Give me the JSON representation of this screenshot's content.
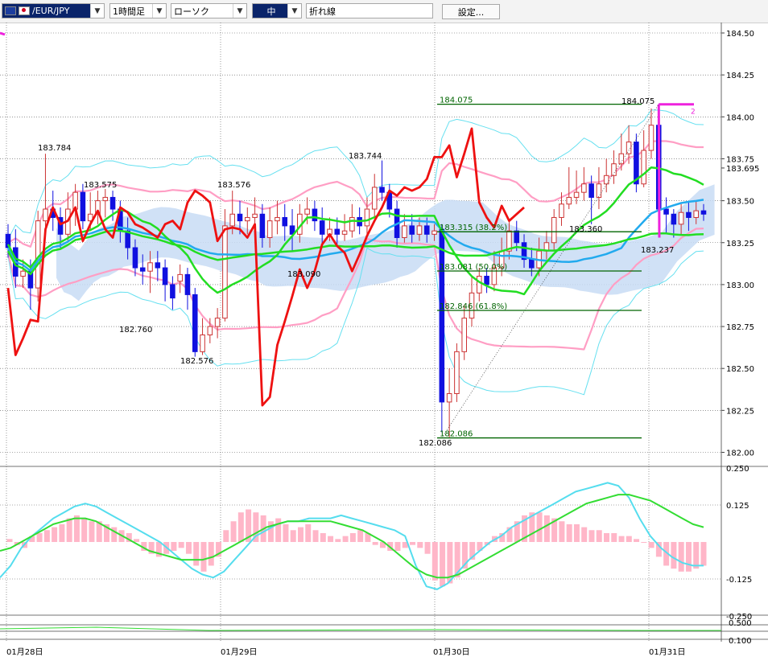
{
  "toolbar": {
    "symbol": "/EUR/JPY",
    "timeframe": "1時間足",
    "chart_type": "ローソク",
    "size": "中",
    "overlay": "折れ線",
    "settings": "設定..."
  },
  "colors": {
    "bull": "#cc3333",
    "bear": "#1010e0",
    "bb_outer": "#66e0f0",
    "bb_mid": "#ff9ec4",
    "ma_green": "#22dd22",
    "ma_blue": "#22aaee",
    "line_red": "#ee1111",
    "cloud": "#c8dcf4",
    "fib": "#006400",
    "magenta": "#ee22dd",
    "macd_hist": "#ffb6c8",
    "macd": "#55ddee",
    "signal": "#33dd33"
  },
  "chart_data": [
    {
      "type": "line",
      "panel": "main",
      "y_ticks": [
        "184.50",
        "184.25",
        "184.00",
        "183.75",
        "183.695",
        "183.50",
        "183.25",
        "183.00",
        "182.75",
        "182.50",
        "182.25",
        "182.00"
      ],
      "ylim": [
        182.0,
        184.5
      ],
      "x_labels": [
        "01月28日",
        "01月29日",
        "01月30日",
        "01月31日"
      ],
      "price_annotations": [
        "183.784",
        "183.575",
        "183.576",
        "183.744",
        "182.760",
        "182.576",
        "183.090",
        "184.075",
        "183.360",
        "183.237",
        "182.086"
      ],
      "fib_levels": [
        {
          "label": "184.075",
          "value": 184.075
        },
        {
          "label": "183.315 (38.2%)",
          "value": 183.315
        },
        {
          "label": "183.081 (50.0%)",
          "value": 183.081
        },
        {
          "label": "182.846 (61.8%)",
          "value": 182.846
        },
        {
          "label": "182.086",
          "value": 182.086
        }
      ],
      "candles": [
        [
          183.3,
          183.22,
          183.36,
          183.16
        ],
        [
          183.22,
          183.05,
          183.33,
          182.98
        ],
        [
          183.05,
          183.08,
          183.15,
          182.98
        ],
        [
          183.08,
          182.98,
          183.15,
          182.85
        ],
        [
          182.98,
          183.38,
          183.44,
          182.9
        ],
        [
          183.38,
          183.45,
          183.78,
          183.32
        ],
        [
          183.45,
          183.4,
          183.56,
          183.32
        ],
        [
          183.4,
          183.3,
          183.46,
          183.22
        ],
        [
          183.3,
          183.45,
          183.55,
          183.25
        ],
        [
          183.45,
          183.55,
          183.6,
          183.35
        ],
        [
          183.55,
          183.38,
          183.6,
          183.33
        ],
        [
          183.38,
          183.42,
          183.55,
          183.32
        ],
        [
          183.42,
          183.5,
          183.56,
          183.36
        ],
        [
          183.5,
          183.52,
          183.57,
          183.4
        ],
        [
          183.52,
          183.45,
          183.56,
          183.38
        ],
        [
          183.45,
          183.32,
          183.5,
          183.25
        ],
        [
          183.32,
          183.22,
          183.4,
          183.15
        ],
        [
          183.22,
          183.1,
          183.27,
          183.05
        ],
        [
          183.1,
          183.08,
          183.18,
          183.0
        ],
        [
          183.08,
          183.13,
          183.2,
          182.95
        ],
        [
          183.13,
          183.1,
          183.2,
          183.02
        ],
        [
          183.1,
          183.0,
          183.15,
          182.9
        ],
        [
          183.0,
          182.92,
          183.05,
          182.85
        ],
        [
          183.02,
          183.06,
          183.12,
          182.95
        ],
        [
          183.06,
          182.94,
          183.1,
          182.85
        ],
        [
          182.94,
          182.6,
          182.98,
          182.57
        ],
        [
          182.6,
          182.7,
          182.8,
          182.58
        ],
        [
          182.7,
          182.75,
          182.8,
          182.65
        ],
        [
          182.75,
          182.8,
          182.86,
          182.68
        ],
        [
          182.8,
          183.35,
          183.45,
          182.78
        ],
        [
          183.35,
          183.42,
          183.56,
          183.3
        ],
        [
          183.42,
          183.38,
          183.5,
          183.3
        ],
        [
          183.38,
          183.4,
          183.46,
          183.3
        ],
        [
          183.4,
          183.42,
          183.52,
          183.35
        ],
        [
          183.42,
          183.28,
          183.48,
          183.22
        ],
        [
          183.28,
          183.38,
          183.46,
          183.22
        ],
        [
          183.38,
          183.4,
          183.5,
          183.3
        ],
        [
          183.4,
          183.35,
          183.48,
          183.26
        ],
        [
          183.35,
          183.3,
          183.45,
          183.2
        ],
        [
          183.3,
          183.42,
          183.48,
          183.25
        ],
        [
          183.42,
          183.45,
          183.52,
          183.36
        ],
        [
          183.45,
          183.38,
          183.5,
          183.32
        ],
        [
          183.38,
          183.3,
          183.46,
          183.24
        ],
        [
          183.3,
          183.33,
          183.4,
          183.26
        ],
        [
          183.33,
          183.3,
          183.4,
          183.24
        ],
        [
          183.3,
          183.32,
          183.42,
          183.26
        ],
        [
          183.32,
          183.4,
          183.48,
          183.28
        ],
        [
          183.4,
          183.35,
          183.46,
          183.3
        ],
        [
          183.35,
          183.45,
          183.52,
          183.3
        ],
        [
          183.45,
          183.58,
          183.66,
          183.4
        ],
        [
          183.58,
          183.55,
          183.74,
          183.5
        ],
        [
          183.55,
          183.45,
          183.6,
          183.4
        ],
        [
          183.45,
          183.28,
          183.5,
          183.22
        ],
        [
          183.28,
          183.35,
          183.42,
          183.25
        ],
        [
          183.35,
          183.3,
          183.42,
          183.25
        ],
        [
          183.3,
          183.35,
          183.4,
          183.26
        ],
        [
          183.35,
          183.3,
          183.4,
          183.25
        ],
        [
          183.3,
          183.32,
          183.36,
          183.26
        ],
        [
          183.33,
          182.3,
          183.36,
          182.12
        ],
        [
          182.3,
          182.35,
          182.5,
          182.09
        ],
        [
          182.35,
          182.6,
          182.65,
          182.3
        ],
        [
          182.6,
          182.8,
          182.88,
          182.55
        ],
        [
          182.8,
          182.95,
          183.05,
          182.75
        ],
        [
          182.95,
          183.05,
          183.1,
          182.9
        ],
        [
          183.05,
          183.0,
          183.1,
          182.95
        ],
        [
          183.0,
          183.1,
          183.2,
          182.96
        ],
        [
          183.1,
          183.2,
          183.28,
          183.05
        ],
        [
          183.2,
          183.32,
          183.38,
          183.15
        ],
        [
          183.32,
          183.25,
          183.38,
          183.2
        ],
        [
          183.25,
          183.15,
          183.3,
          183.1
        ],
        [
          183.15,
          183.1,
          183.22,
          183.05
        ],
        [
          183.1,
          183.2,
          183.28,
          183.05
        ],
        [
          183.2,
          183.25,
          183.32,
          183.15
        ],
        [
          183.25,
          183.4,
          183.45,
          183.2
        ],
        [
          183.4,
          183.48,
          183.55,
          183.35
        ],
        [
          183.48,
          183.52,
          183.7,
          183.45
        ],
        [
          183.52,
          183.55,
          183.68,
          183.48
        ],
        [
          183.55,
          183.6,
          183.7,
          183.5
        ],
        [
          183.6,
          183.52,
          183.65,
          183.36
        ],
        [
          183.52,
          183.6,
          183.7,
          183.45
        ],
        [
          183.6,
          183.65,
          183.75,
          183.55
        ],
        [
          183.65,
          183.72,
          183.8,
          183.6
        ],
        [
          183.72,
          183.78,
          183.9,
          183.68
        ],
        [
          183.78,
          183.85,
          183.95,
          183.72
        ],
        [
          183.85,
          183.6,
          183.9,
          183.55
        ],
        [
          183.6,
          183.8,
          183.92,
          183.58
        ],
        [
          183.8,
          183.95,
          184.05,
          183.75
        ],
        [
          183.95,
          183.45,
          184.075,
          183.4
        ],
        [
          183.45,
          183.42,
          183.52,
          183.3
        ],
        [
          183.42,
          183.36,
          183.45,
          183.28
        ],
        [
          183.36,
          183.43,
          183.48,
          183.3
        ],
        [
          183.43,
          183.4,
          183.5,
          183.32
        ],
        [
          183.4,
          183.44,
          183.5,
          183.36
        ],
        [
          183.44,
          183.42,
          183.48,
          183.38
        ]
      ]
    },
    {
      "type": "bar",
      "panel": "macd",
      "y_ticks": [
        "0.250",
        "0.125",
        "-0.125",
        "-0.250"
      ],
      "ylim": [
        -0.25,
        0.25
      ],
      "hist": [
        0.01,
        -0.01,
        -0.02,
        0.02,
        0.03,
        0.04,
        0.05,
        0.06,
        0.08,
        0.09,
        0.08,
        0.07,
        0.07,
        0.06,
        0.05,
        0.04,
        0.03,
        0.01,
        -0.03,
        -0.04,
        -0.05,
        -0.04,
        -0.03,
        -0.02,
        -0.04,
        -0.08,
        -0.1,
        -0.08,
        -0.05,
        0.04,
        0.07,
        0.1,
        0.11,
        0.1,
        0.09,
        0.07,
        0.08,
        0.06,
        0.04,
        0.05,
        0.06,
        0.04,
        0.03,
        0.02,
        0.01,
        0.02,
        0.03,
        0.04,
        0.03,
        -0.01,
        -0.02,
        -0.03,
        -0.03,
        -0.02,
        -0.01,
        -0.02,
        -0.04,
        -0.13,
        -0.15,
        -0.14,
        -0.12,
        -0.09,
        -0.06,
        -0.03,
        -0.01,
        0.02,
        0.03,
        0.05,
        0.07,
        0.09,
        0.1,
        0.1,
        0.09,
        0.08,
        0.07,
        0.06,
        0.06,
        0.05,
        0.04,
        0.04,
        0.03,
        0.03,
        0.02,
        0.02,
        0.01,
        0.0,
        -0.02,
        -0.05,
        -0.08,
        -0.09,
        -0.1,
        -0.1,
        -0.09,
        -0.08
      ],
      "macd": [
        -0.12,
        -0.08,
        -0.02,
        0.02,
        0.05,
        0.08,
        0.1,
        0.12,
        0.13,
        0.12,
        0.1,
        0.08,
        0.06,
        0.04,
        0.02,
        0.0,
        -0.03,
        -0.06,
        -0.09,
        -0.11,
        -0.12,
        -0.1,
        -0.06,
        -0.02,
        0.02,
        0.04,
        0.06,
        0.07,
        0.07,
        0.08,
        0.08,
        0.08,
        0.09,
        0.08,
        0.07,
        0.06,
        0.05,
        0.04,
        0.02,
        -0.08,
        -0.15,
        -0.16,
        -0.14,
        -0.1,
        -0.06,
        -0.03,
        0.0,
        0.02,
        0.05,
        0.07,
        0.09,
        0.11,
        0.13,
        0.15,
        0.17,
        0.18,
        0.19,
        0.2,
        0.19,
        0.15,
        0.08,
        0.02,
        -0.02,
        -0.05,
        -0.07,
        -0.08,
        -0.08
      ],
      "signal": [
        -0.03,
        -0.02,
        0.0,
        0.02,
        0.04,
        0.06,
        0.07,
        0.08,
        0.08,
        0.07,
        0.05,
        0.03,
        0.01,
        -0.01,
        -0.03,
        -0.04,
        -0.05,
        -0.06,
        -0.06,
        -0.06,
        -0.05,
        -0.03,
        -0.01,
        0.01,
        0.03,
        0.05,
        0.06,
        0.07,
        0.07,
        0.07,
        0.07,
        0.07,
        0.06,
        0.05,
        0.04,
        0.02,
        0.0,
        -0.03,
        -0.06,
        -0.09,
        -0.11,
        -0.12,
        -0.12,
        -0.11,
        -0.09,
        -0.07,
        -0.05,
        -0.03,
        -0.01,
        0.01,
        0.03,
        0.05,
        0.07,
        0.09,
        0.11,
        0.13,
        0.14,
        0.15,
        0.16,
        0.16,
        0.15,
        0.14,
        0.12,
        0.1,
        0.08,
        0.06,
        0.05
      ]
    },
    {
      "type": "line",
      "panel": "bottom",
      "y_ticks": [
        "0.500",
        "0.100"
      ]
    }
  ]
}
